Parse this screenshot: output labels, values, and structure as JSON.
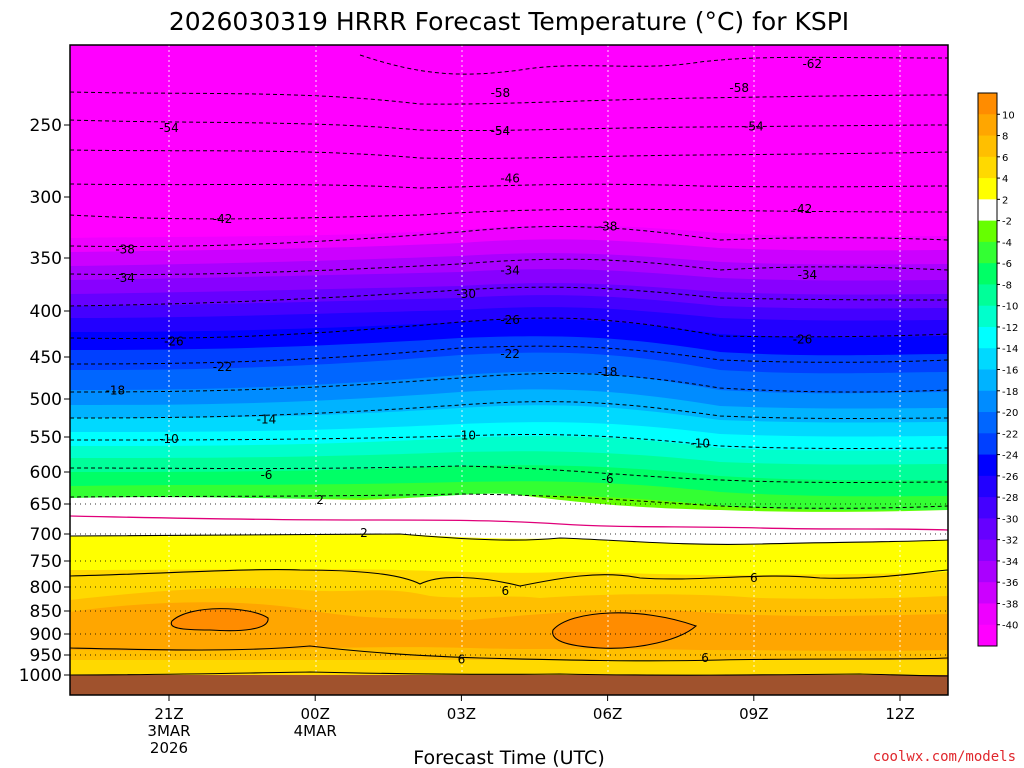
{
  "chart_data": {
    "type": "heatmap",
    "title": "2026030319 HRRR Forecast Temperature (°C) for KSPI",
    "xlabel": "Forecast Time (UTC)",
    "ylabel": "",
    "credit": "coolwx.com/models",
    "x_ticks": [
      {
        "hour": 0,
        "lines": [
          "21Z",
          "3MAR",
          "2026"
        ]
      },
      {
        "hour": 3,
        "lines": [
          "00Z",
          "4MAR"
        ]
      },
      {
        "hour": 6,
        "lines": [
          "03Z"
        ]
      },
      {
        "hour": 9,
        "lines": [
          "06Z"
        ]
      },
      {
        "hour": 12,
        "lines": [
          "09Z"
        ]
      },
      {
        "hour": 15,
        "lines": [
          "12Z"
        ]
      }
    ],
    "xlim": [
      -2,
      16
    ],
    "y_ticks": [
      250,
      300,
      350,
      400,
      450,
      500,
      550,
      600,
      650,
      700,
      750,
      800,
      850,
      900,
      950,
      1000
    ],
    "ylim_hpa": [
      200,
      1025
    ],
    "surface_pressure_hpa": 1000,
    "colorbar": {
      "ticks": [
        10,
        8,
        6,
        4,
        2,
        -2,
        -4,
        -6,
        -8,
        -10,
        -12,
        -14,
        -16,
        -18,
        -20,
        -22,
        -24,
        -26,
        -28,
        -30,
        -32,
        -34,
        -36,
        -38,
        -40
      ],
      "colors": [
        "#ff8c00",
        "#ffa600",
        "#ffbf00",
        "#ffd900",
        "#ffff00",
        "#ffffff",
        "#66ff00",
        "#33ff33",
        "#00ff66",
        "#00ff99",
        "#00ffcc",
        "#00ffff",
        "#00d9ff",
        "#00b3ff",
        "#008cff",
        "#0066ff",
        "#0040ff",
        "#0000ff",
        "#2200ff",
        "#4400ff",
        "#6600ff",
        "#8800ff",
        "#aa00ff",
        "#cc00ff",
        "#ee00ff",
        "#ff00ff"
      ]
    },
    "contour_labels": [
      {
        "value": "-62",
        "hour": 13.2,
        "hpa": 212
      },
      {
        "value": "-58",
        "hour": 6.8,
        "hpa": 230
      },
      {
        "value": "-58",
        "hour": 11.7,
        "hpa": 227
      },
      {
        "value": "-54",
        "hour": 0.0,
        "hpa": 252
      },
      {
        "value": "-54",
        "hour": 6.8,
        "hpa": 254
      },
      {
        "value": "-54",
        "hour": 12.0,
        "hpa": 251
      },
      {
        "value": "-46",
        "hour": 7.0,
        "hpa": 287
      },
      {
        "value": "-42",
        "hour": 1.1,
        "hpa": 318
      },
      {
        "value": "-42",
        "hour": 13.0,
        "hpa": 310
      },
      {
        "value": "-38",
        "hour": -0.9,
        "hpa": 343
      },
      {
        "value": "-38",
        "hour": 9.0,
        "hpa": 324
      },
      {
        "value": "-34",
        "hour": -0.9,
        "hpa": 369
      },
      {
        "value": "-34",
        "hour": 7.0,
        "hpa": 362
      },
      {
        "value": "-34",
        "hour": 13.1,
        "hpa": 366
      },
      {
        "value": "-30",
        "hour": 6.1,
        "hpa": 384
      },
      {
        "value": "-26",
        "hour": 0.1,
        "hpa": 433
      },
      {
        "value": "-26",
        "hour": 7.0,
        "hpa": 410
      },
      {
        "value": "-26",
        "hour": 13.0,
        "hpa": 431
      },
      {
        "value": "-22",
        "hour": 1.1,
        "hpa": 462
      },
      {
        "value": "-22",
        "hour": 7.0,
        "hpa": 447
      },
      {
        "value": "-18",
        "hour": -1.1,
        "hpa": 490
      },
      {
        "value": "-18",
        "hour": 9.0,
        "hpa": 468
      },
      {
        "value": "-14",
        "hour": 2.0,
        "hpa": 527
      },
      {
        "value": "-10",
        "hour": 0.0,
        "hpa": 553
      },
      {
        "value": "-10",
        "hour": 6.1,
        "hpa": 548
      },
      {
        "value": "-10",
        "hour": 10.9,
        "hpa": 559
      },
      {
        "value": "-6",
        "hour": 2.0,
        "hpa": 605
      },
      {
        "value": "-6",
        "hour": 9.0,
        "hpa": 611
      },
      {
        "value": "2",
        "hour": 3.1,
        "hpa": 644
      },
      {
        "value": "2",
        "hour": 4.0,
        "hpa": 698
      },
      {
        "value": "6",
        "hour": 12.0,
        "hpa": 783
      },
      {
        "value": "6",
        "hour": 6.9,
        "hpa": 808
      },
      {
        "value": "6",
        "hour": 6.0,
        "hpa": 961
      },
      {
        "value": "6",
        "hour": 11.0,
        "hpa": 958
      }
    ]
  }
}
